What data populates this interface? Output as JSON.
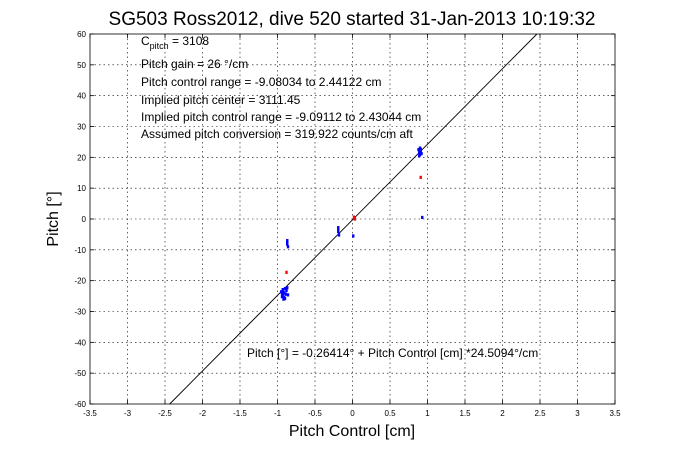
{
  "chart_data": {
    "type": "scatter",
    "title": "SG503 Ross2012, dive 520 started 31-Jan-2013 10:19:32",
    "xlabel": "Pitch Control [cm]",
    "ylabel": "Pitch [°]",
    "xlim": [
      -3.5,
      3.5
    ],
    "ylim": [
      -60,
      60
    ],
    "xticks": [
      -3.5,
      -3,
      -2.5,
      -2,
      -1.5,
      -1,
      -0.5,
      0,
      0.5,
      1,
      1.5,
      2,
      2.5,
      3,
      3.5
    ],
    "xtick_labels": [
      "-3.5",
      "-3",
      "-2.5",
      "-2",
      "-1.5",
      "-1",
      "-0.5",
      "0",
      "0.5",
      "1",
      "1.5",
      "2",
      "2.5",
      "3",
      "3.5"
    ],
    "yticks": [
      -60,
      -50,
      -40,
      -30,
      -20,
      -10,
      0,
      10,
      20,
      30,
      40,
      50,
      60
    ],
    "ytick_labels": [
      "-60",
      "-50",
      "-40",
      "-30",
      "-20",
      "-10",
      "0",
      "10",
      "20",
      "30",
      "40",
      "50",
      "60"
    ],
    "grid": true,
    "colors": {
      "primary": "#0000ff",
      "secondary": "#ff0000",
      "fit": "#000000"
    },
    "series": [
      {
        "color": "#0000ff",
        "points": [
          [
            -0.93,
            -24.5
          ],
          [
            -0.92,
            -23.8
          ],
          [
            -0.94,
            -25.2
          ],
          [
            -0.91,
            -24.0
          ],
          [
            -0.95,
            -23.6
          ],
          [
            -0.9,
            -25.8
          ],
          [
            -0.93,
            -22.9
          ],
          [
            -0.89,
            -24.4
          ],
          [
            -0.92,
            -26.0
          ],
          [
            -0.88,
            -23.2
          ],
          [
            -0.87,
            -22.3
          ],
          [
            -0.86,
            -24.6
          ],
          [
            -0.94,
            -24.1
          ],
          [
            -0.9,
            -22.6
          ],
          [
            -0.91,
            -25.4
          ],
          [
            -0.87,
            -7.0
          ],
          [
            -0.87,
            -8.2
          ],
          [
            -0.86,
            -9.0
          ],
          [
            -0.87,
            -7.6
          ],
          [
            -0.19,
            -2.8
          ],
          [
            -0.19,
            -4.1
          ],
          [
            -0.18,
            -5.2
          ],
          [
            -0.19,
            -3.4
          ],
          [
            0.88,
            22.5
          ],
          [
            0.89,
            21.6
          ],
          [
            0.9,
            20.9
          ],
          [
            0.91,
            22.0
          ],
          [
            0.9,
            23.0
          ],
          [
            0.92,
            21.2
          ],
          [
            0.89,
            20.5
          ],
          [
            0.91,
            22.6
          ],
          [
            0.93,
            0.5
          ],
          [
            0.01,
            -5.5
          ]
        ]
      },
      {
        "color": "#ff0000",
        "points": [
          [
            0.02,
            0.6
          ],
          [
            0.03,
            0.0
          ],
          [
            -0.88,
            -17.3
          ],
          [
            0.91,
            13.5
          ]
        ]
      }
    ],
    "fit": {
      "slope": 24.5094,
      "intercept": -0.26414
    },
    "annotations": {
      "cpitch_main": "C",
      "cpitch_sub": "pitch",
      "cpitch_value": " = 3108",
      "lines": [
        "Pitch gain = 26 °/cm",
        "Pitch control range = -9.08034 to 2.44122 cm",
        "Implied pitch center = 3111.45",
        "Implied pitch control range = -9.09112 to 2.43044 cm",
        "Assumed pitch conversion = 319.922 counts/cm aft"
      ],
      "fit_label": "Pitch [°] = -0.26414° + Pitch Control [cm] *24.5094°/cm"
    }
  }
}
